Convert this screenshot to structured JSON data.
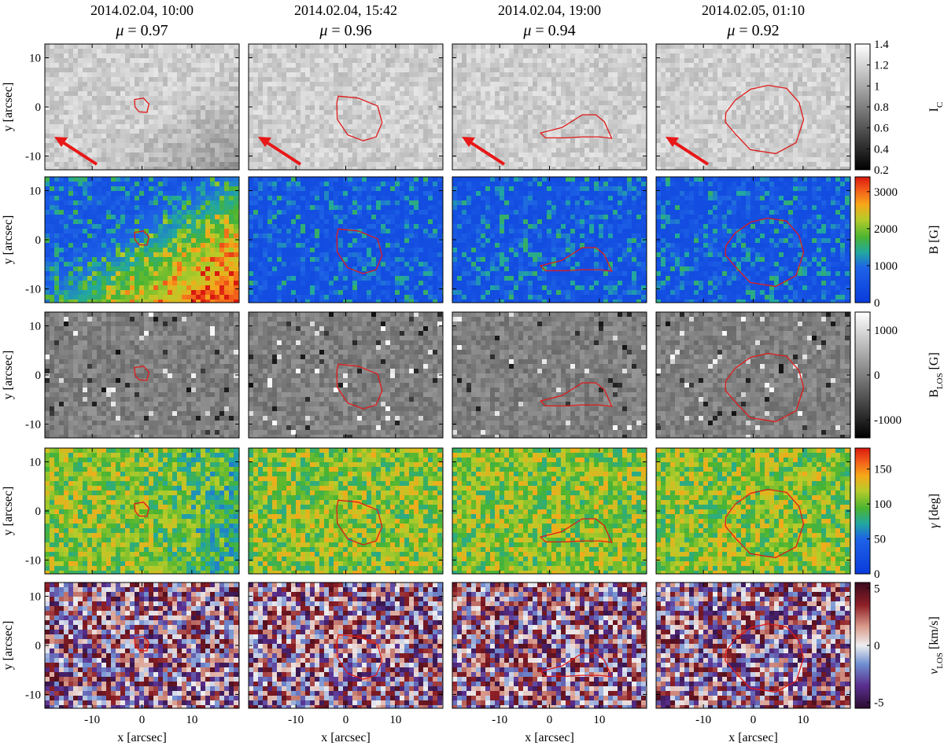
{
  "columns": [
    {
      "date": "2014.02.04, 10:00",
      "mu_symbol": "μ",
      "mu_value": "= 0.97"
    },
    {
      "date": "2014.02.04, 15:42",
      "mu_symbol": "μ",
      "mu_value": "= 0.96"
    },
    {
      "date": "2014.02.04, 19:00",
      "mu_symbol": "μ",
      "mu_value": "= 0.94"
    },
    {
      "date": "2014.02.05, 01:10",
      "mu_symbol": "μ",
      "mu_value": "= 0.92"
    }
  ],
  "rows": [
    {
      "key": "ic",
      "colorbar_label": "I",
      "colorbar_sub": "C",
      "colorbar_unit": "",
      "colormap": "gray",
      "ticks": [
        "1.4",
        "1.2",
        "1",
        "0.8",
        "0.6",
        "0.4",
        "0.2"
      ],
      "range": [
        0.2,
        1.4
      ]
    },
    {
      "key": "b",
      "colorbar_label": "B",
      "colorbar_sub": "",
      "colorbar_unit": " [G]",
      "colormap": "jet",
      "ticks": [
        "3000",
        "2000",
        "1000",
        "0"
      ],
      "range": [
        0,
        3400
      ]
    },
    {
      "key": "blos",
      "colorbar_label": "B",
      "colorbar_sub": "LOS",
      "colorbar_unit": " [G]",
      "colormap": "gray",
      "ticks": [
        "1000",
        "0",
        "-1000"
      ],
      "range": [
        -1400,
        1400
      ]
    },
    {
      "key": "gamma",
      "colorbar_label": "γ",
      "colorbar_sub": "",
      "colorbar_unit": " [deg]",
      "colormap": "jet",
      "ticks": [
        "150",
        "100",
        "50",
        "0"
      ],
      "range": [
        0,
        180
      ]
    },
    {
      "key": "vlos",
      "colorbar_label": "v",
      "colorbar_sub": "LOS",
      "colorbar_unit": " [km/s]",
      "colormap": "rdbu",
      "ticks": [
        "5",
        "0",
        "-5"
      ],
      "range": [
        -5.5,
        5.5
      ]
    }
  ],
  "y_axis": {
    "label": "y [arcsec]",
    "ticks": [
      "10",
      "0",
      "-10"
    ]
  },
  "x_axis": {
    "label": "x [arcsec]",
    "ticks": [
      "-10",
      "0",
      "10"
    ]
  },
  "colors": {
    "contour": "#e01a1a",
    "arrow": "#e81818"
  }
}
